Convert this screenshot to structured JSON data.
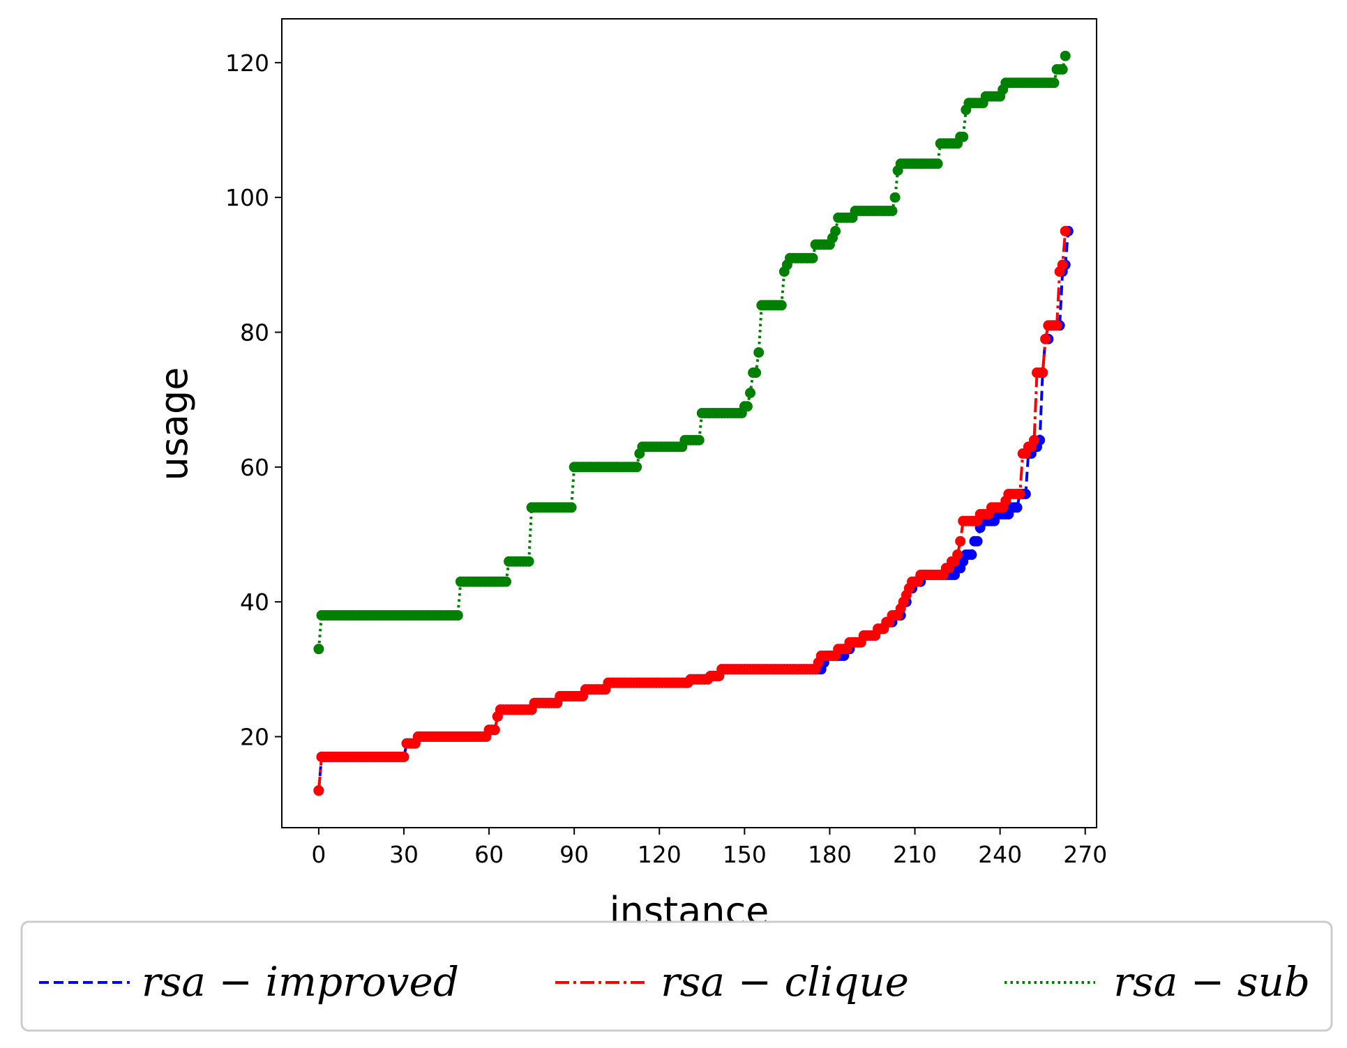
{
  "chart_data": {
    "type": "line",
    "xlabel": "instance",
    "ylabel": "usage",
    "xlim": [
      -13,
      274
    ],
    "ylim": [
      6.5,
      126.5
    ],
    "xticks": [
      0,
      30,
      60,
      90,
      120,
      150,
      180,
      210,
      240,
      270
    ],
    "yticks": [
      20,
      40,
      60,
      80,
      100,
      120
    ],
    "grid": false,
    "legend_position": "bottom",
    "series": [
      {
        "name": "rsa − improved",
        "color": "#0000ff",
        "linestyle": "dashed",
        "steps": [
          [
            0,
            12
          ],
          [
            1,
            17
          ],
          [
            31,
            19
          ],
          [
            35,
            20
          ],
          [
            60,
            21
          ],
          [
            63,
            23
          ],
          [
            64,
            24
          ],
          [
            76,
            25
          ],
          [
            85,
            26
          ],
          [
            94,
            27
          ],
          [
            102,
            28
          ],
          [
            131,
            28.5
          ],
          [
            138,
            29
          ],
          [
            142,
            30
          ],
          [
            178,
            31
          ],
          [
            179,
            32
          ],
          [
            186,
            33
          ],
          [
            188,
            34
          ],
          [
            192,
            35
          ],
          [
            197,
            36
          ],
          [
            200,
            37
          ],
          [
            203,
            38
          ],
          [
            205,
            38
          ],
          [
            206,
            40
          ],
          [
            208,
            42
          ],
          [
            210,
            43
          ],
          [
            213,
            44
          ],
          [
            225,
            45
          ],
          [
            227,
            46
          ],
          [
            228,
            47
          ],
          [
            231,
            49
          ],
          [
            233,
            51
          ],
          [
            234,
            52
          ],
          [
            239,
            53
          ],
          [
            244,
            54
          ],
          [
            247,
            56
          ],
          [
            250,
            62
          ],
          [
            252,
            63
          ],
          [
            254,
            64
          ],
          [
            255,
            74
          ],
          [
            256,
            79
          ],
          [
            258,
            81
          ],
          [
            262,
            89
          ],
          [
            263,
            90
          ],
          [
            264,
            95
          ]
        ]
      },
      {
        "name": "rsa − clique",
        "color": "#ff0000",
        "linestyle": "dashdot",
        "steps": [
          [
            0,
            12
          ],
          [
            1,
            17
          ],
          [
            31,
            19
          ],
          [
            35,
            20
          ],
          [
            60,
            21
          ],
          [
            63,
            23
          ],
          [
            64,
            24
          ],
          [
            76,
            25
          ],
          [
            85,
            26
          ],
          [
            94,
            27
          ],
          [
            102,
            28
          ],
          [
            131,
            28.5
          ],
          [
            138,
            29
          ],
          [
            142,
            30
          ],
          [
            176,
            31
          ],
          [
            177,
            32
          ],
          [
            183,
            33
          ],
          [
            187,
            34
          ],
          [
            192,
            35
          ],
          [
            197,
            36
          ],
          [
            200,
            37
          ],
          [
            202,
            38
          ],
          [
            205,
            39
          ],
          [
            206,
            40
          ],
          [
            207,
            41
          ],
          [
            208,
            42
          ],
          [
            209,
            43
          ],
          [
            212,
            44
          ],
          [
            221,
            45
          ],
          [
            223,
            46
          ],
          [
            225,
            47
          ],
          [
            226,
            49
          ],
          [
            227,
            52
          ],
          [
            233,
            53
          ],
          [
            237,
            54
          ],
          [
            242,
            55
          ],
          [
            243,
            56
          ],
          [
            248,
            62
          ],
          [
            250,
            63
          ],
          [
            252,
            64
          ],
          [
            253,
            74
          ],
          [
            256,
            79
          ],
          [
            257,
            81
          ],
          [
            261,
            89
          ],
          [
            262,
            90
          ],
          [
            263,
            95
          ]
        ]
      },
      {
        "name": "rsa − sub",
        "color": "#008000",
        "linestyle": "dotted",
        "steps": [
          [
            0,
            33
          ],
          [
            1,
            38
          ],
          [
            49,
            38
          ],
          [
            50,
            43
          ],
          [
            66,
            43
          ],
          [
            67,
            46
          ],
          [
            74,
            46
          ],
          [
            75,
            54
          ],
          [
            89,
            54
          ],
          [
            90,
            60
          ],
          [
            112,
            60
          ],
          [
            113,
            62
          ],
          [
            114,
            63
          ],
          [
            128,
            63
          ],
          [
            129,
            64
          ],
          [
            134,
            64
          ],
          [
            135,
            68
          ],
          [
            148,
            68
          ],
          [
            150,
            69
          ],
          [
            152,
            71
          ],
          [
            153,
            74
          ],
          [
            155,
            77
          ],
          [
            156,
            84
          ],
          [
            163,
            84
          ],
          [
            164,
            89
          ],
          [
            165,
            90
          ],
          [
            166,
            91
          ],
          [
            174,
            91
          ],
          [
            175,
            93
          ],
          [
            180,
            93
          ],
          [
            181,
            94
          ],
          [
            182,
            95
          ],
          [
            183,
            97
          ],
          [
            188,
            97
          ],
          [
            189,
            98
          ],
          [
            202,
            98
          ],
          [
            203,
            100
          ],
          [
            204,
            104
          ],
          [
            205,
            105
          ],
          [
            218,
            105
          ],
          [
            219,
            108
          ],
          [
            225,
            108
          ],
          [
            226,
            109
          ],
          [
            228,
            113
          ],
          [
            229,
            114
          ],
          [
            234,
            114
          ],
          [
            235,
            115
          ],
          [
            240,
            115
          ],
          [
            241,
            116
          ],
          [
            242,
            117
          ],
          [
            259,
            117
          ],
          [
            260,
            119
          ],
          [
            262,
            119
          ],
          [
            263,
            121
          ]
        ]
      }
    ]
  }
}
